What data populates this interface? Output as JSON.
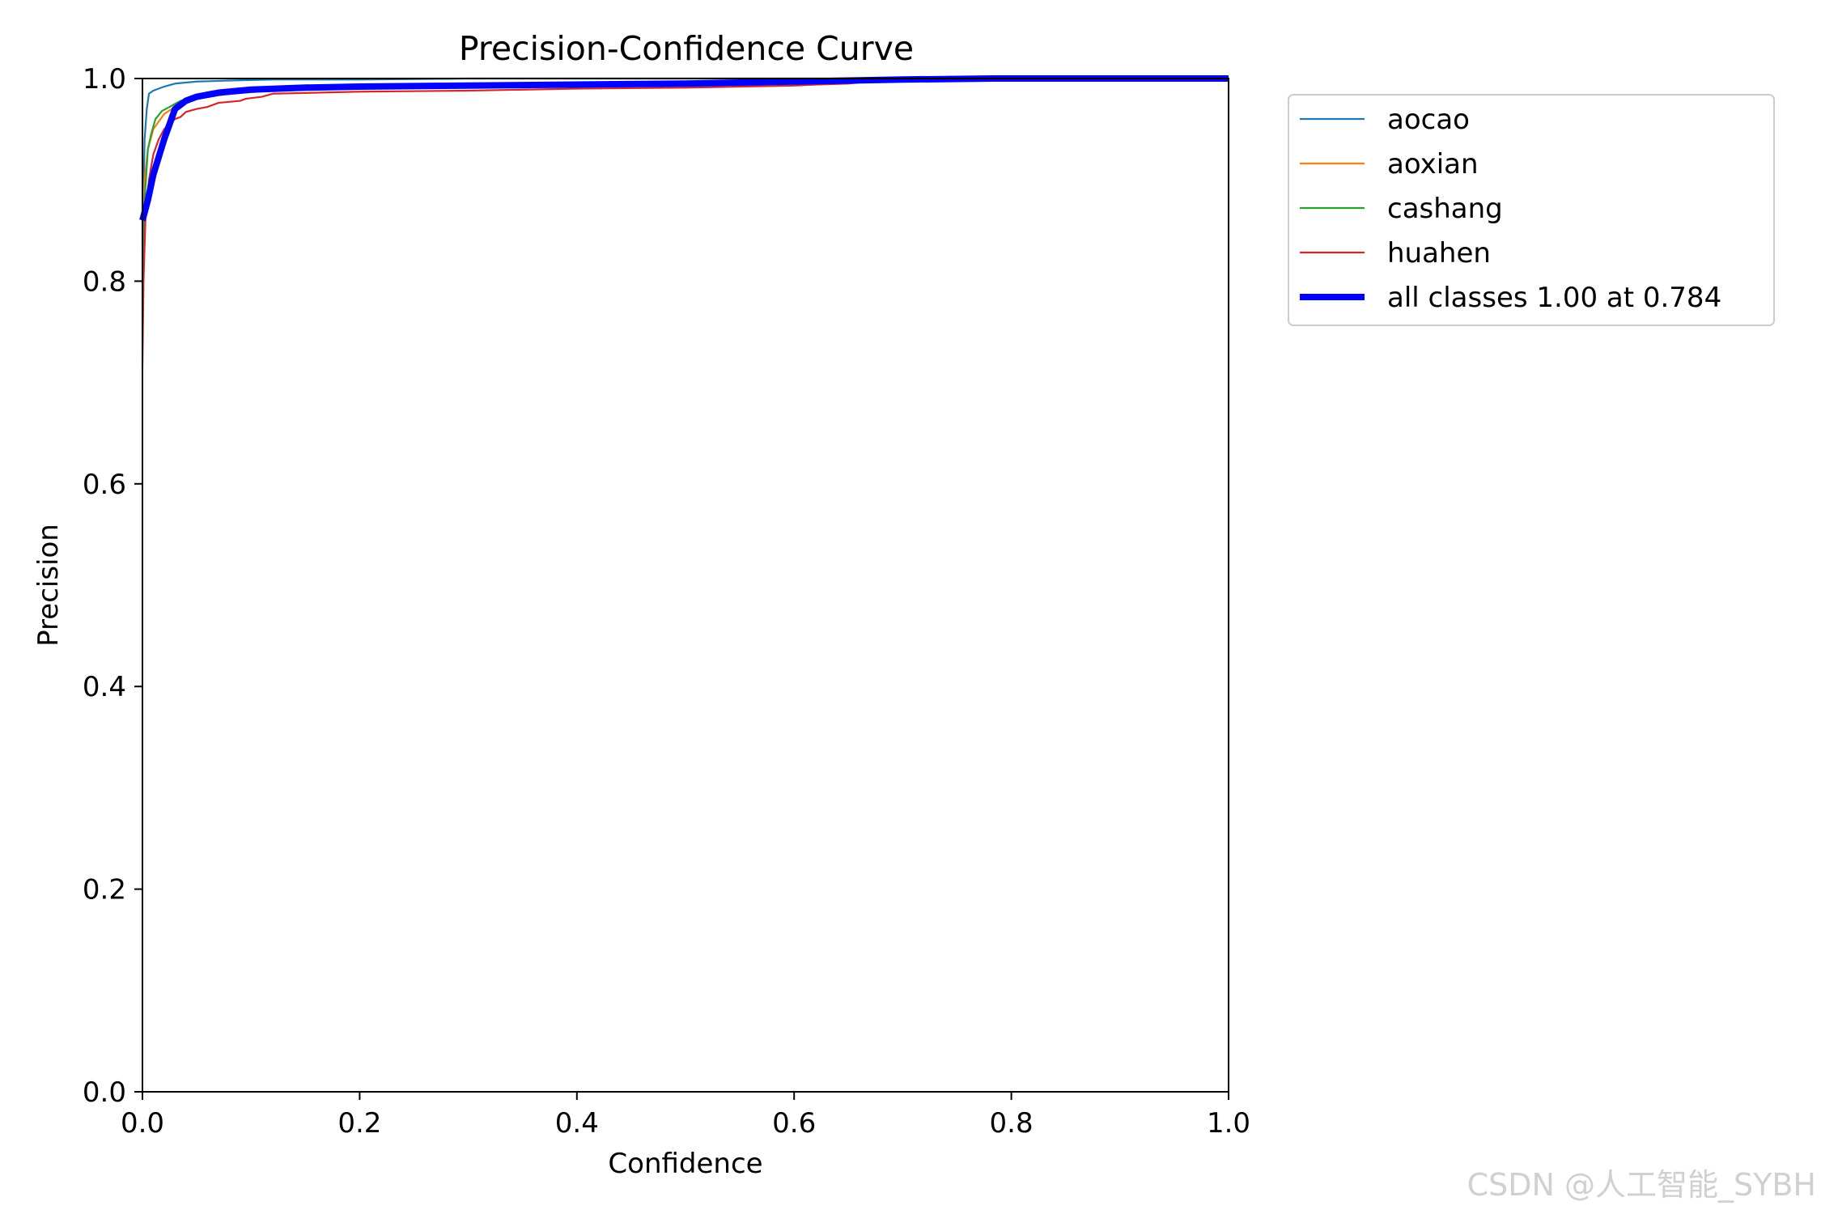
{
  "chart_data": {
    "type": "line",
    "title": "Precision-Confidence Curve",
    "xlabel": "Confidence",
    "ylabel": "Precision",
    "xlim": [
      0.0,
      1.0
    ],
    "ylim": [
      0.0,
      1.0
    ],
    "xticks": [
      "0.0",
      "0.2",
      "0.4",
      "0.6",
      "0.8",
      "1.0"
    ],
    "yticks": [
      "0.0",
      "0.2",
      "0.4",
      "0.6",
      "0.8",
      "1.0"
    ],
    "grid": false,
    "legend_position": "outside-top-right",
    "series": [
      {
        "name": "aocao",
        "color": "#1f77b4",
        "x": [
          0.0,
          0.002,
          0.004,
          0.006,
          0.01,
          0.015,
          0.02,
          0.03,
          0.05,
          0.08,
          0.12,
          0.2,
          0.3,
          0.5,
          0.7,
          1.0
        ],
        "y": [
          0.84,
          0.94,
          0.97,
          0.985,
          0.988,
          0.99,
          0.992,
          0.995,
          0.997,
          0.998,
          0.999,
          0.999,
          1.0,
          1.0,
          1.0,
          1.0
        ]
      },
      {
        "name": "aoxian",
        "color": "#ff7f0e",
        "x": [
          0.0,
          0.002,
          0.005,
          0.01,
          0.02,
          0.03,
          0.05,
          0.08,
          0.12,
          0.2,
          0.3,
          0.5,
          0.7,
          1.0
        ],
        "y": [
          0.84,
          0.9,
          0.93,
          0.95,
          0.965,
          0.972,
          0.98,
          0.985,
          0.988,
          0.99,
          0.992,
          0.995,
          0.998,
          1.0
        ]
      },
      {
        "name": "cashang",
        "color": "#2ca02c",
        "x": [
          0.0,
          0.002,
          0.005,
          0.008,
          0.012,
          0.018,
          0.025,
          0.035,
          0.05,
          0.08,
          0.12,
          0.2,
          0.3,
          0.5,
          0.7,
          1.0
        ],
        "y": [
          0.8,
          0.88,
          0.93,
          0.945,
          0.96,
          0.968,
          0.972,
          0.978,
          0.982,
          0.986,
          0.989,
          0.992,
          0.994,
          0.996,
          0.999,
          1.0
        ]
      },
      {
        "name": "huahen",
        "color": "#d62728",
        "x": [
          0.0,
          0.001,
          0.003,
          0.006,
          0.01,
          0.015,
          0.02,
          0.03,
          0.035,
          0.04,
          0.05,
          0.06,
          0.07,
          0.09,
          0.095,
          0.11,
          0.12,
          0.2,
          0.3,
          0.4,
          0.5,
          0.55,
          0.6,
          0.62,
          0.65,
          0.68,
          0.7,
          0.8,
          0.9,
          1.0
        ],
        "y": [
          0.715,
          0.8,
          0.87,
          0.9,
          0.925,
          0.94,
          0.95,
          0.96,
          0.962,
          0.967,
          0.97,
          0.972,
          0.976,
          0.978,
          0.98,
          0.982,
          0.985,
          0.987,
          0.988,
          0.99,
          0.991,
          0.992,
          0.993,
          0.994,
          0.995,
          0.998,
          0.999,
          1.0,
          1.0,
          1.0
        ]
      },
      {
        "name": "all classes 1.00 at 0.784",
        "color": "#0000ff",
        "thick": true,
        "x": [
          0.0,
          0.005,
          0.01,
          0.02,
          0.03,
          0.04,
          0.05,
          0.07,
          0.1,
          0.15,
          0.2,
          0.3,
          0.4,
          0.5,
          0.6,
          0.7,
          0.784,
          0.9,
          1.0
        ],
        "y": [
          0.86,
          0.88,
          0.905,
          0.94,
          0.97,
          0.978,
          0.982,
          0.986,
          0.989,
          0.991,
          0.992,
          0.993,
          0.994,
          0.995,
          0.997,
          0.999,
          1.0,
          1.0,
          1.0
        ]
      }
    ]
  },
  "watermark": "CSDN @人工智能_SYBH"
}
